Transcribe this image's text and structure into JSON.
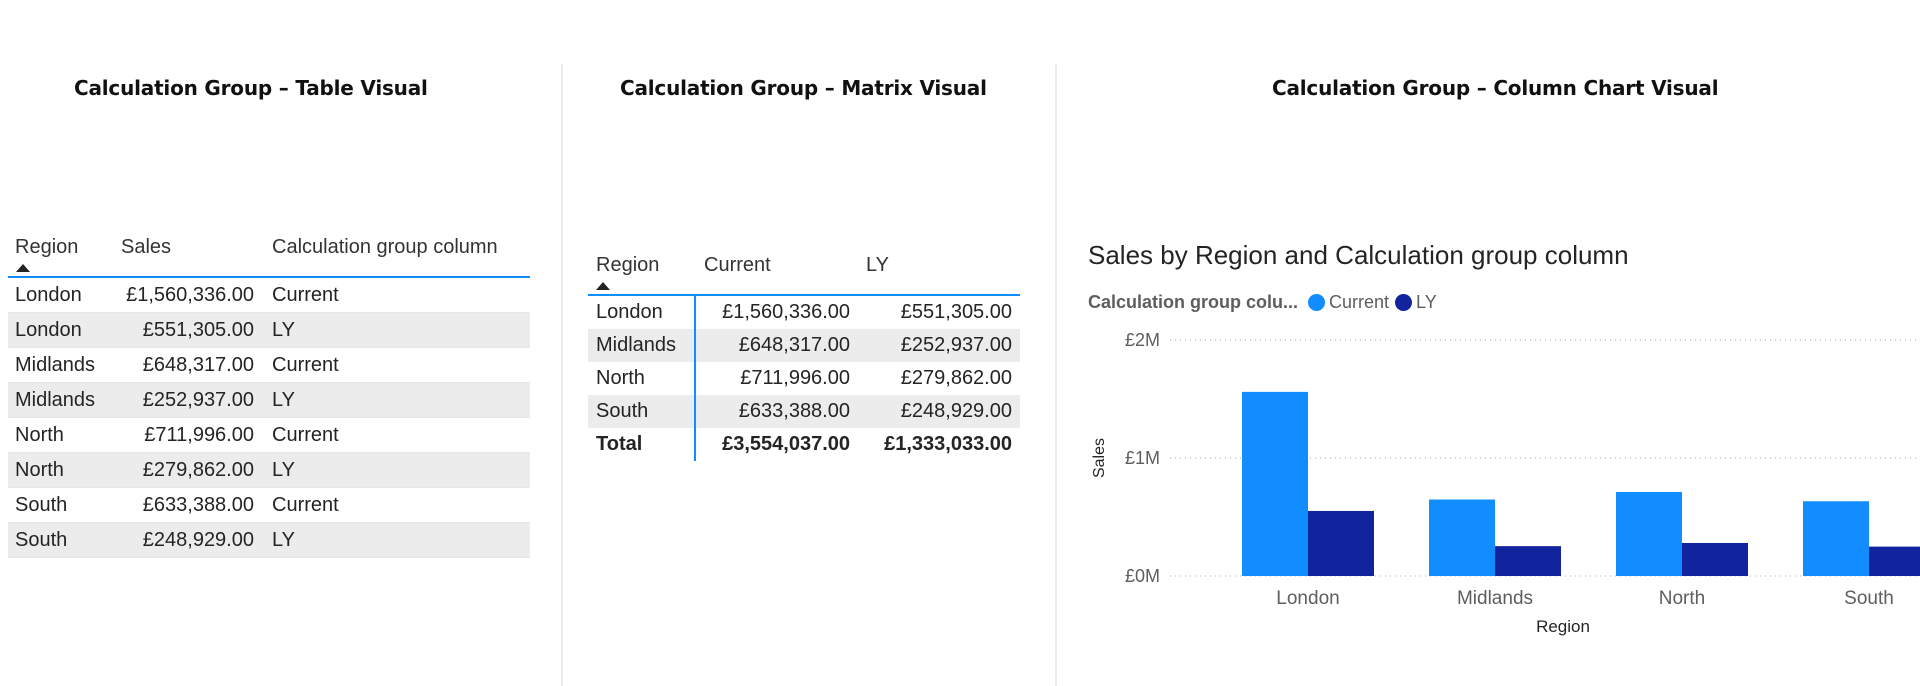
{
  "panels": {
    "table_title": "Calculation Group – Table Visual",
    "matrix_title": "Calculation Group – Matrix Visual",
    "chart_title": "Calculation Group – Column Chart Visual"
  },
  "table": {
    "headers": [
      "Region",
      "Sales",
      "Calculation group column"
    ],
    "rows": [
      [
        "London",
        "£1,560,336.00",
        "Current"
      ],
      [
        "London",
        "£551,305.00",
        "LY"
      ],
      [
        "Midlands",
        "£648,317.00",
        "Current"
      ],
      [
        "Midlands",
        "£252,937.00",
        "LY"
      ],
      [
        "North",
        "£711,996.00",
        "Current"
      ],
      [
        "North",
        "£279,862.00",
        "LY"
      ],
      [
        "South",
        "£633,388.00",
        "Current"
      ],
      [
        "South",
        "£248,929.00",
        "LY"
      ]
    ]
  },
  "matrix": {
    "headers": [
      "Region",
      "Current",
      "LY"
    ],
    "rows": [
      [
        "London",
        "£1,560,336.00",
        "£551,305.00"
      ],
      [
        "Midlands",
        "£648,317.00",
        "£252,937.00"
      ],
      [
        "North",
        "£711,996.00",
        "£279,862.00"
      ],
      [
        "South",
        "£633,388.00",
        "£248,929.00"
      ]
    ],
    "total": [
      "Total",
      "£3,554,037.00",
      "£1,333,033.00"
    ]
  },
  "chart_data": {
    "type": "bar",
    "title": "Sales by Region and Calculation group column",
    "legend_title": "Calculation group colu...",
    "legend_placement": "top-left",
    "xlabel": "Region",
    "ylabel": "Sales",
    "categories": [
      "London",
      "Midlands",
      "North",
      "South"
    ],
    "series": [
      {
        "name": "Current",
        "color": "#118dff",
        "values": [
          1560336,
          648317,
          711996,
          633388
        ]
      },
      {
        "name": "LY",
        "color": "#12239e",
        "values": [
          551305,
          252937,
          279862,
          248929
        ]
      }
    ],
    "ylim": [
      0,
      2000000
    ],
    "yticks": [
      {
        "value": 0,
        "label": "£0M"
      },
      {
        "value": 1000000,
        "label": "£1M"
      },
      {
        "value": 2000000,
        "label": "£2M"
      }
    ],
    "grid": true
  }
}
